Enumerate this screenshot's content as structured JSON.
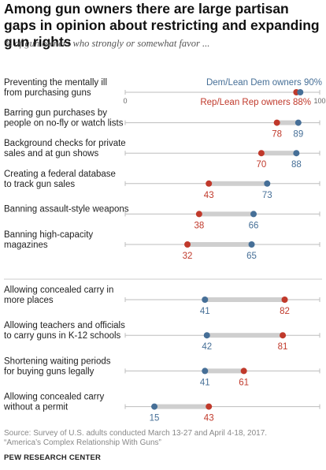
{
  "header": {
    "title": "Among gun owners there are large partisan gaps in opinion about restricting and expanding gun rights",
    "subtitle": "% of gun owners who strongly or somewhat favor ..."
  },
  "footer": {
    "source_line1": "Source: Survey of U.S. adults conducted March 13-27 and April 4-18, 2017.",
    "source_line2": "“America’s Complex Relationship With Guns”",
    "brand": "PEW RESEARCH CENTER"
  },
  "colors": {
    "dem": "#466F97",
    "rep": "#C0392B",
    "bar": "#CFCFCF",
    "line": "#BDBDBD"
  },
  "chart_data": {
    "type": "dot plot",
    "xlim": [
      0,
      100
    ],
    "x_ticks": [
      "0",
      "100"
    ],
    "series": [
      {
        "name": "Dem/Lean Dem owners",
        "key": "dem"
      },
      {
        "name": "Rep/Lean Rep owners",
        "key": "rep"
      }
    ],
    "legend": {
      "dem": "Dem/Lean Dem owners 90%",
      "rep": "Rep/Lean Rep owners 88%"
    },
    "groups": [
      {
        "items": [
          {
            "label": [
              "Preventing the mentally ill",
              "from purchasing guns"
            ],
            "dem": 90,
            "rep": 88
          },
          {
            "label": [
              "Barring gun purchases by",
              "people on no-fly or watch lists"
            ],
            "dem": 89,
            "rep": 78
          },
          {
            "label": [
              "Background checks for private",
              "sales and at gun shows"
            ],
            "dem": 88,
            "rep": 70
          },
          {
            "label": [
              "Creating a federal database",
              "to track gun sales"
            ],
            "dem": 73,
            "rep": 43
          },
          {
            "label": [
              "Banning assault-style weapons"
            ],
            "dem": 66,
            "rep": 38
          },
          {
            "label": [
              "Banning high-capacity",
              "magazines"
            ],
            "dem": 65,
            "rep": 32
          }
        ]
      },
      {
        "items": [
          {
            "label": [
              "Allowing concealed carry in",
              "more places"
            ],
            "dem": 41,
            "rep": 82
          },
          {
            "label": [
              "Allowing teachers and officials",
              "to carry guns in K-12 schools"
            ],
            "dem": 42,
            "rep": 81
          },
          {
            "label": [
              "Shortening waiting periods",
              "for buying guns legally"
            ],
            "dem": 41,
            "rep": 61
          },
          {
            "label": [
              "Allowing concealed carry",
              "without a permit"
            ],
            "dem": 15,
            "rep": 43
          }
        ]
      }
    ]
  }
}
